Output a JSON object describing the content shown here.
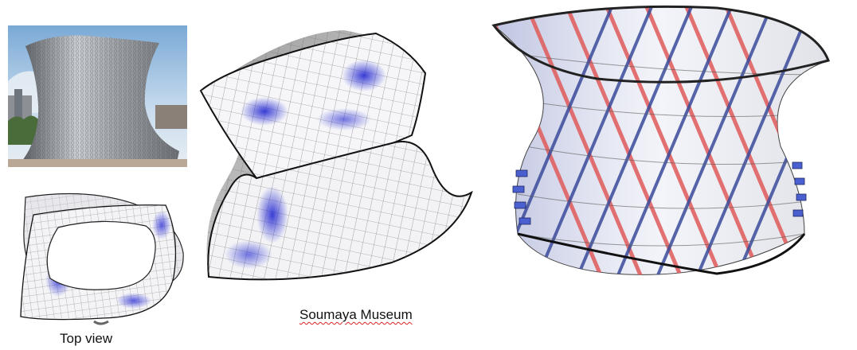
{
  "captions": {
    "top_view": "Top view",
    "museum": "Soumaya Museum"
  },
  "colors": {
    "mesh_line": "#6f6f6f",
    "shade_blue": "#3b3fd6",
    "outline": "#111111",
    "sky": "#c9dcee",
    "beam_red": "#e05a5a",
    "beam_blue": "#4a5fd0",
    "spellcheck_underline": "#d22222"
  }
}
